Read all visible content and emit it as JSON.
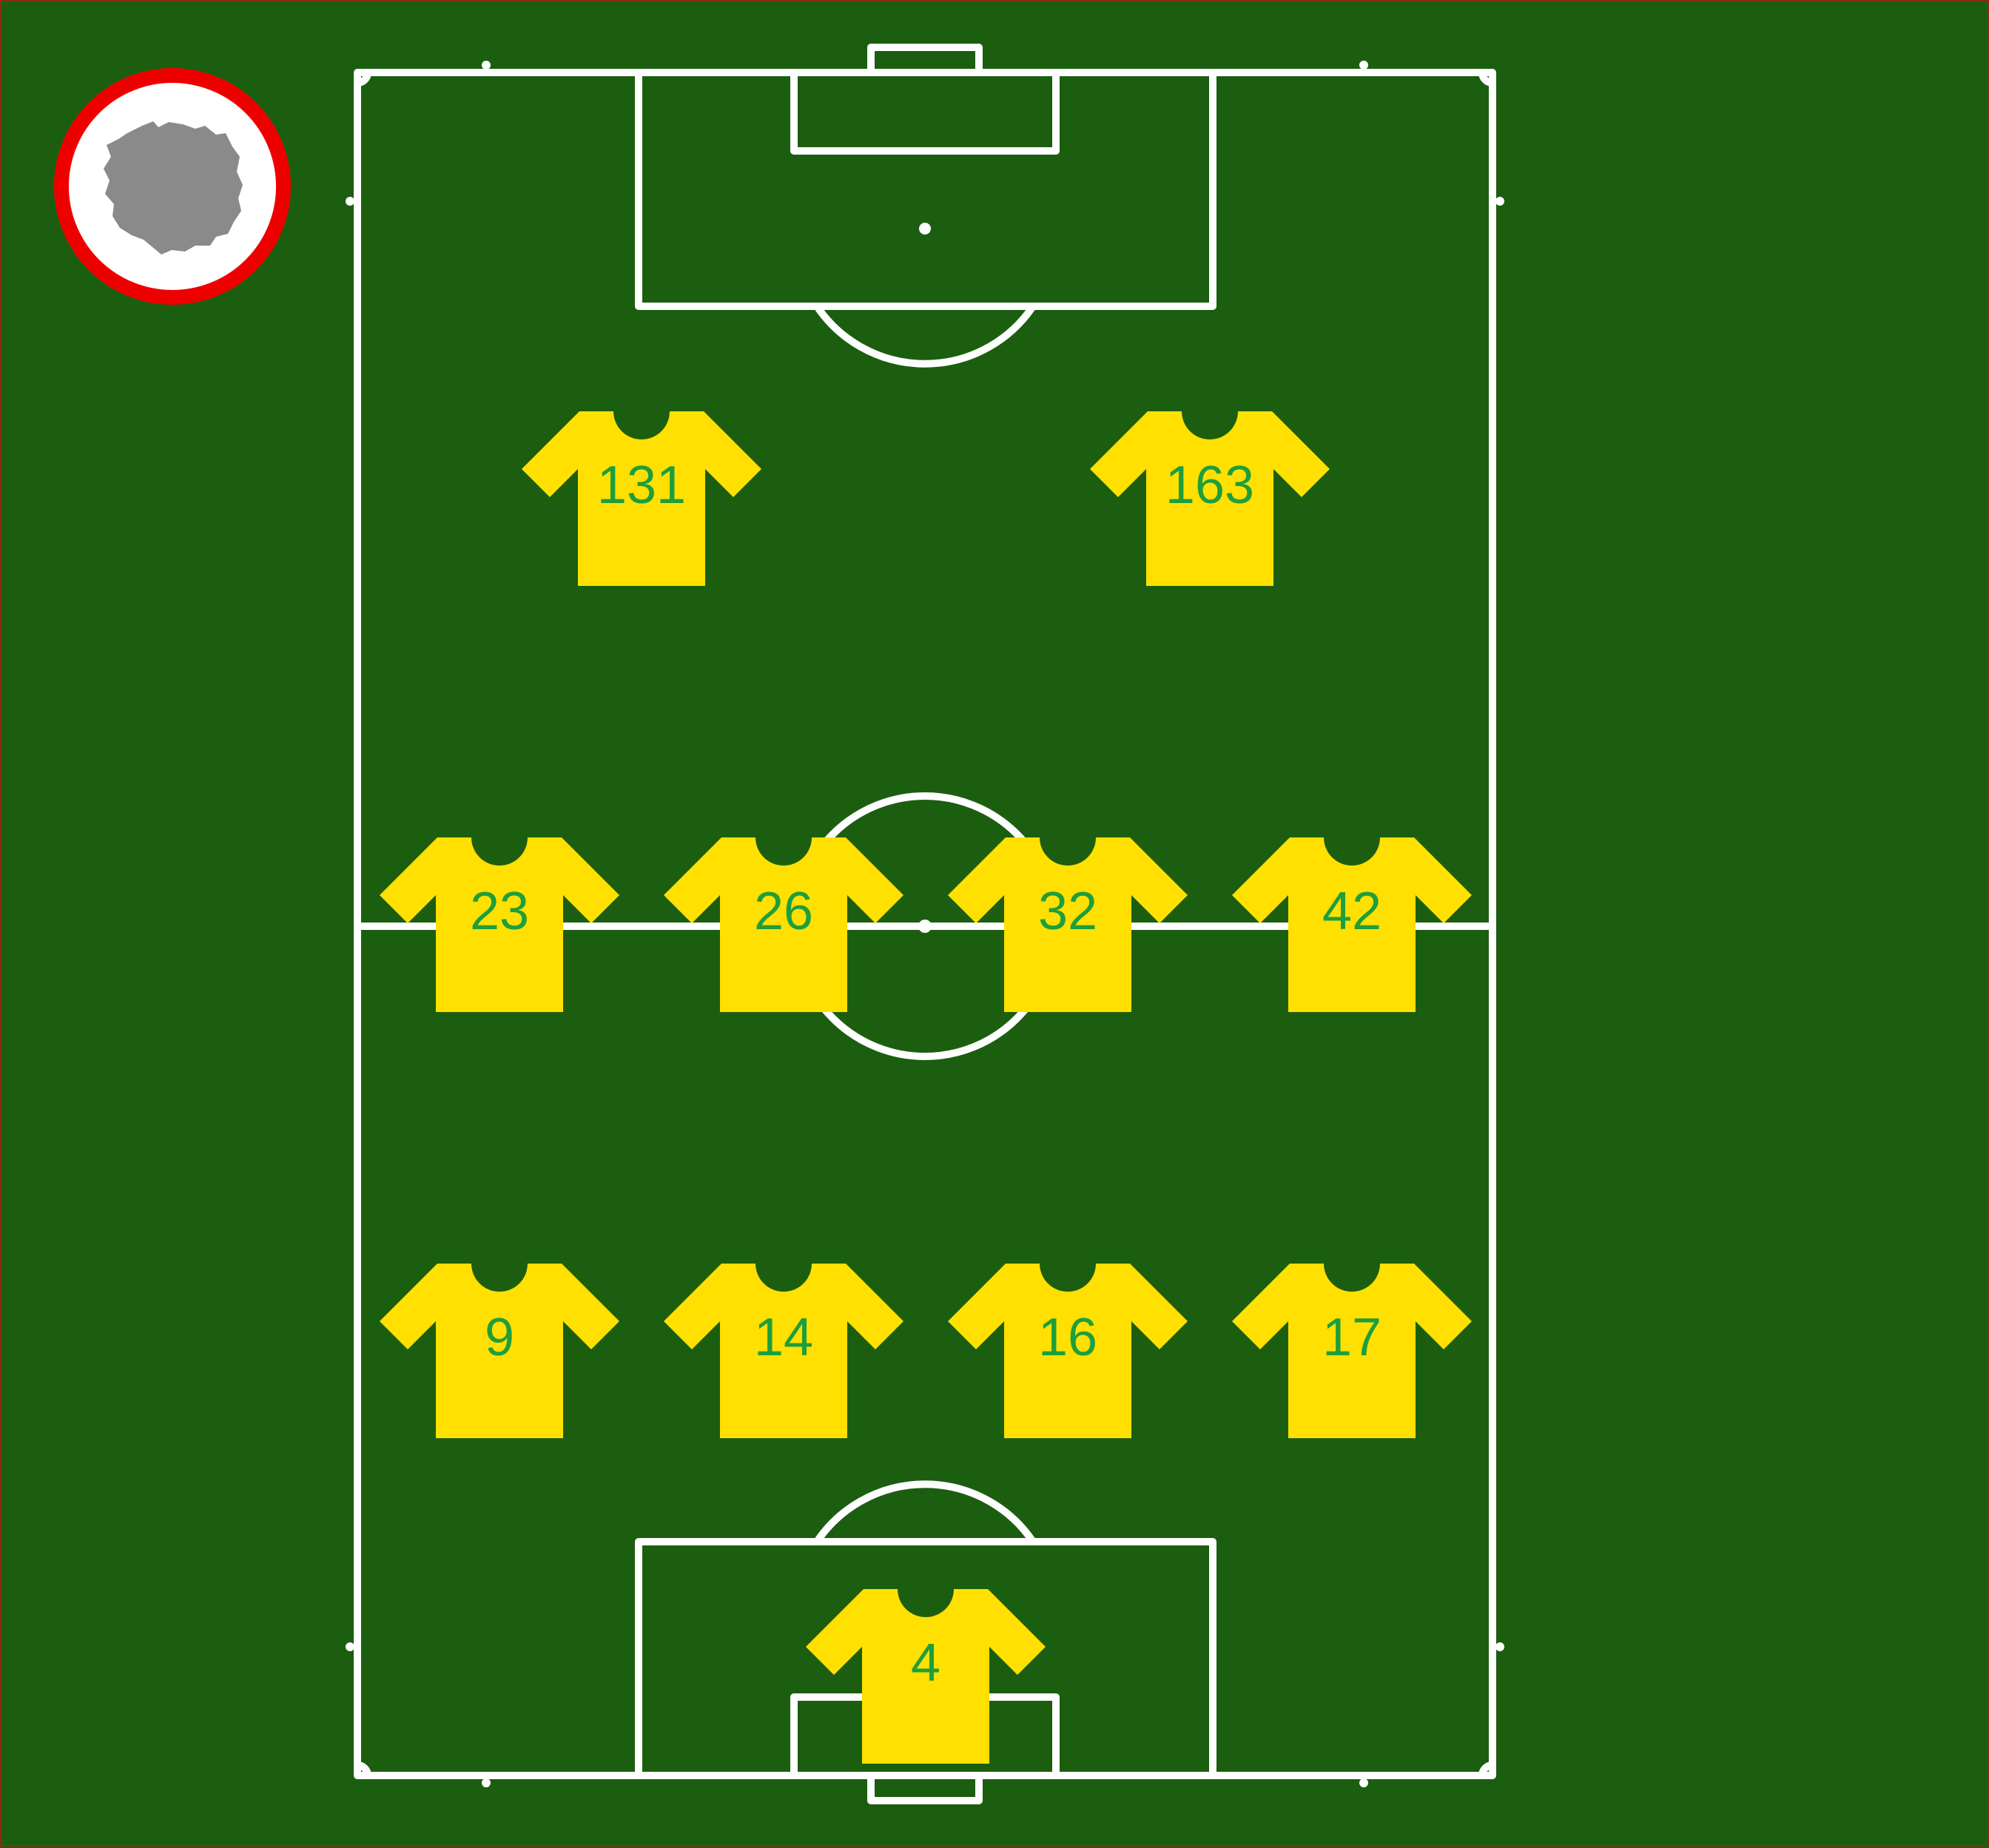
{
  "colors": {
    "grass": "#1c5e0f",
    "lines": "#ffffff",
    "frame": "#8b2c10",
    "shirt": "#ffe000",
    "number": "#1e9e3c",
    "badge_ring": "#ee0000",
    "badge_fill": "#ffffff",
    "badge_blob": "#8a8a8a"
  },
  "team_badge": {
    "icon": "club-crest-icon"
  },
  "formation": {
    "players": [
      {
        "number": "131",
        "row": "forward",
        "slot": 1
      },
      {
        "number": "163",
        "row": "forward",
        "slot": 2
      },
      {
        "number": "23",
        "row": "midfield",
        "slot": 1
      },
      {
        "number": "26",
        "row": "midfield",
        "slot": 2
      },
      {
        "number": "32",
        "row": "midfield",
        "slot": 3
      },
      {
        "number": "42",
        "row": "midfield",
        "slot": 4
      },
      {
        "number": "9",
        "row": "defence",
        "slot": 1
      },
      {
        "number": "14",
        "row": "defence",
        "slot": 2
      },
      {
        "number": "16",
        "row": "defence",
        "slot": 3
      },
      {
        "number": "17",
        "row": "defence",
        "slot": 4
      },
      {
        "number": "4",
        "row": "goalkeeper",
        "slot": 1
      }
    ]
  }
}
